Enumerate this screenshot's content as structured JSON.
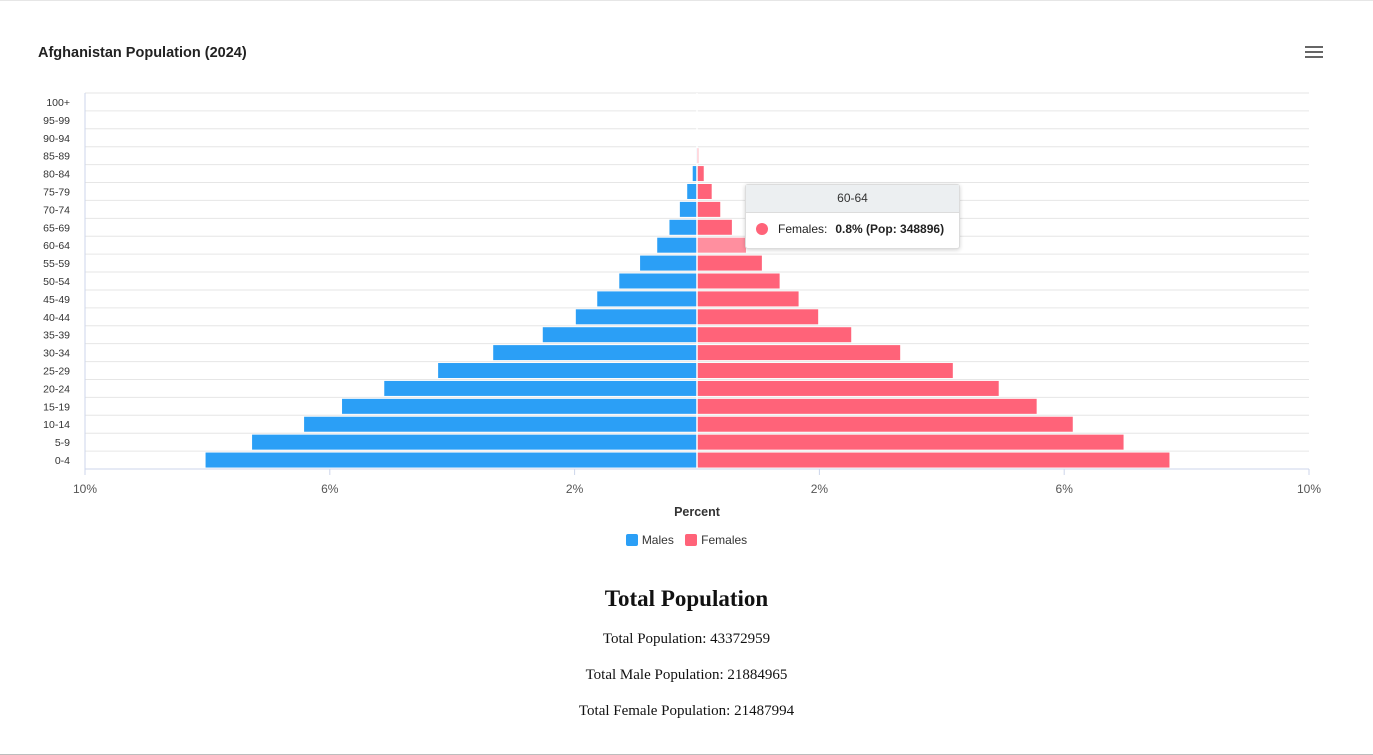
{
  "header": {
    "title": "Afghanistan Population (2024)",
    "menu_icon": "hamburger-menu-icon"
  },
  "colors": {
    "males": "#2b9ff6",
    "females": "#ff6379",
    "highlight_female": "#ff8f9f"
  },
  "chart_data": {
    "type": "bar",
    "orientation": "horizontal-pyramid",
    "title": "Afghanistan Population (2024)",
    "xlabel": "Percent",
    "ylabel": "",
    "xlim": [
      -10,
      10
    ],
    "x_tick_labels": [
      "10%",
      "6%",
      "2%",
      "2%",
      "6%",
      "10%"
    ],
    "grid": true,
    "legend_position": "bottom",
    "categories": [
      "100+",
      "95-99",
      "90-94",
      "85-89",
      "80-84",
      "75-79",
      "70-74",
      "65-69",
      "60-64",
      "55-59",
      "50-54",
      "45-49",
      "40-44",
      "35-39",
      "30-34",
      "25-29",
      "20-24",
      "15-19",
      "10-14",
      "5-9",
      "0-4"
    ],
    "series": [
      {
        "name": "Males",
        "values": [
          0,
          0,
          0,
          0.01,
          0.07,
          0.16,
          0.28,
          0.45,
          0.65,
          0.93,
          1.27,
          1.63,
          1.98,
          2.52,
          3.33,
          4.23,
          5.11,
          5.8,
          6.42,
          7.27,
          8.03
        ]
      },
      {
        "name": "Females",
        "values": [
          0,
          0,
          0,
          0.02,
          0.11,
          0.24,
          0.38,
          0.57,
          0.8,
          1.06,
          1.35,
          1.66,
          1.98,
          2.52,
          3.32,
          4.18,
          4.93,
          5.55,
          6.14,
          6.97,
          7.72
        ]
      }
    ]
  },
  "tooltip": {
    "category": "60-64",
    "label": "Females:",
    "value": "0.8% (Pop: 348896)"
  },
  "legend": {
    "males": "Males",
    "females": "Females"
  },
  "totals": {
    "heading": "Total Population",
    "total": "Total Population: 43372959",
    "male": "Total Male Population: 21884965",
    "female": "Total Female Population: 21487994"
  }
}
